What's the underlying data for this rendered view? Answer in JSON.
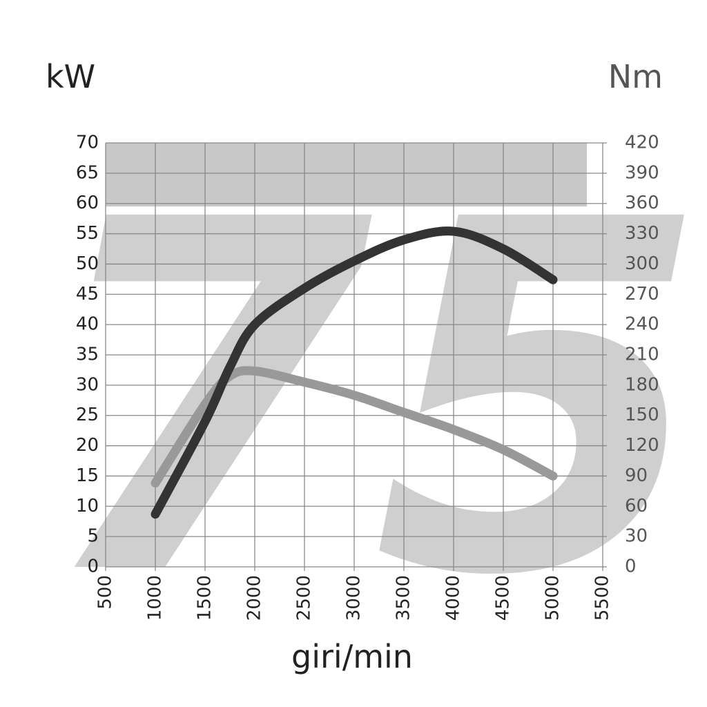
{
  "chart_data": {
    "type": "line",
    "watermark": "75",
    "y_label": "kW",
    "y2_label": "Nm",
    "x_label": "giri/min",
    "x": [
      1000,
      1500,
      1750,
      2000,
      2500,
      3000,
      3500,
      4000,
      4500,
      5000
    ],
    "series": [
      {
        "name": "kW",
        "color": "#333333",
        "values": [
          8.7,
          24,
          33,
          40,
          46,
          50.5,
          54,
          55.4,
          52.5,
          47.4
        ]
      },
      {
        "name": "Nm",
        "color": "#999999",
        "axis": "y2",
        "values": [
          83,
          161,
          189,
          194,
          183,
          170,
          153,
          136,
          116,
          90
        ]
      }
    ],
    "xlim": [
      500,
      5500
    ],
    "xticks": [
      500,
      1000,
      1500,
      2000,
      2500,
      3000,
      3500,
      4000,
      4500,
      5000,
      5500
    ],
    "ylim": [
      0,
      70
    ],
    "yticks": [
      0,
      5,
      10,
      15,
      20,
      25,
      30,
      35,
      40,
      45,
      50,
      55,
      60,
      65,
      70
    ],
    "y2lim": [
      0,
      420
    ],
    "y2ticks": [
      0,
      30,
      60,
      90,
      120,
      150,
      180,
      210,
      240,
      270,
      300,
      330,
      360,
      390,
      420
    ],
    "grid": true
  }
}
